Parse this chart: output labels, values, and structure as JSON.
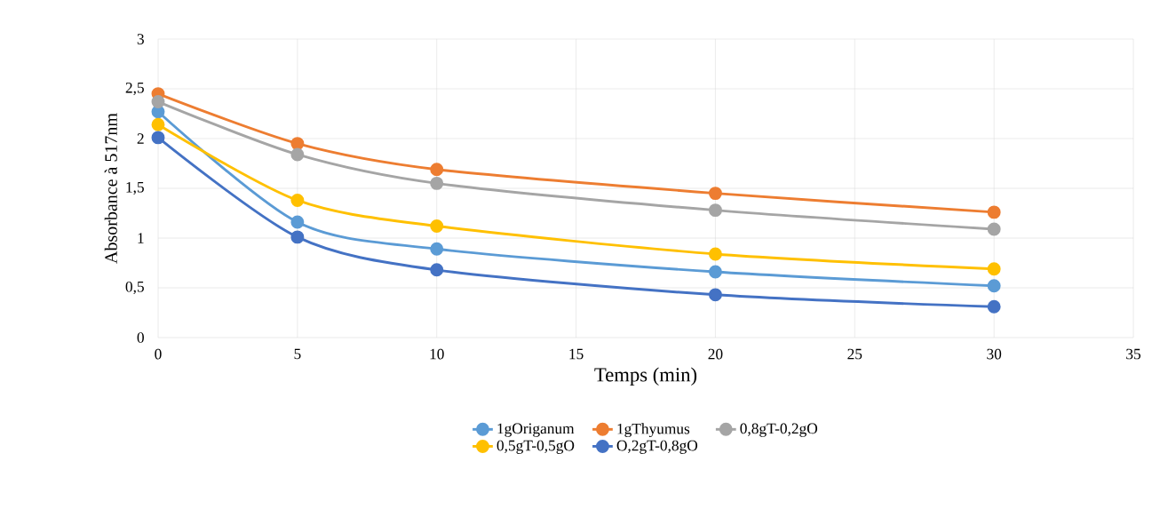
{
  "chart_data": {
    "type": "line",
    "xlabel": "Temps (min)",
    "ylabel": "Absorbance à 517nm",
    "x": [
      0,
      5,
      10,
      20,
      30
    ],
    "series": [
      {
        "name": "1gOriganum",
        "color": "#5b9bd5",
        "values": [
          2.27,
          1.16,
          0.89,
          0.66,
          0.52
        ]
      },
      {
        "name": "1gThyumus",
        "color": "#ed7d31",
        "values": [
          2.45,
          1.95,
          1.69,
          1.45,
          1.26
        ]
      },
      {
        "name": "0,8gT-0,2gO",
        "color": "#a5a5a5",
        "values": [
          2.37,
          1.84,
          1.55,
          1.28,
          1.09
        ]
      },
      {
        "name": "0,5gT-0,5gO",
        "color": "#ffc000",
        "values": [
          2.14,
          1.38,
          1.12,
          0.84,
          0.69
        ]
      },
      {
        "name": "O,2gT-0,8gO",
        "color": "#4472c4",
        "values": [
          2.01,
          1.01,
          0.68,
          0.43,
          0.31
        ]
      }
    ],
    "xlim": [
      0,
      35
    ],
    "xticks": [
      0,
      5,
      10,
      15,
      20,
      25,
      30,
      35
    ],
    "ylim": [
      0,
      3
    ],
    "yticks": [
      0,
      {
        "value": 0.5,
        "label": "0,5"
      },
      1,
      {
        "value": 1.5,
        "label": "1,5"
      },
      2,
      {
        "value": 2.5,
        "label": "2,5"
      },
      3
    ],
    "grid": true,
    "legend": "bottom",
    "marker": "circle",
    "line_style": "solid"
  }
}
